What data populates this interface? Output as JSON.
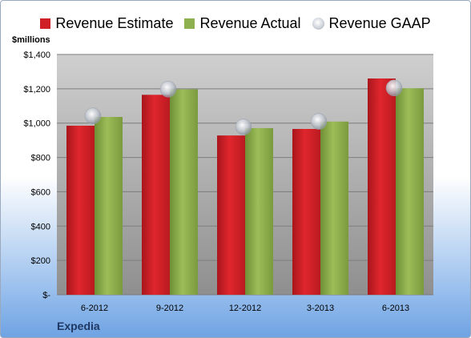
{
  "unit_label": "$millions",
  "company_label": "Expedia",
  "colors": {
    "estimate": "#cf2027",
    "actual": "#8fb04e",
    "gaap": "#c7ccd3"
  },
  "chart_data": {
    "type": "bar",
    "title": "",
    "xlabel": "",
    "ylabel": "$millions",
    "categories": [
      "6-2012",
      "9-2012",
      "12-2012",
      "3-2013",
      "6-2013"
    ],
    "ylim": [
      0,
      1400
    ],
    "yticks": [
      0,
      200,
      400,
      600,
      800,
      1000,
      1200,
      1400
    ],
    "ytick_labels": [
      "$-",
      "$200",
      "$400",
      "$600",
      "$800",
      "$1,000",
      "$1,200",
      "$1,400"
    ],
    "grid": true,
    "legend_position": "top",
    "series": [
      {
        "name": "Revenue Estimate",
        "type": "bar",
        "values": [
          985,
          1165,
          928,
          966,
          1260
        ]
      },
      {
        "name": "Revenue Actual",
        "type": "bar",
        "values": [
          1036,
          1197,
          971,
          1009,
          1203
        ]
      },
      {
        "name": "Revenue GAAP",
        "type": "scatter",
        "values": [
          1042,
          1198,
          978,
          1010,
          1205
        ]
      }
    ]
  }
}
